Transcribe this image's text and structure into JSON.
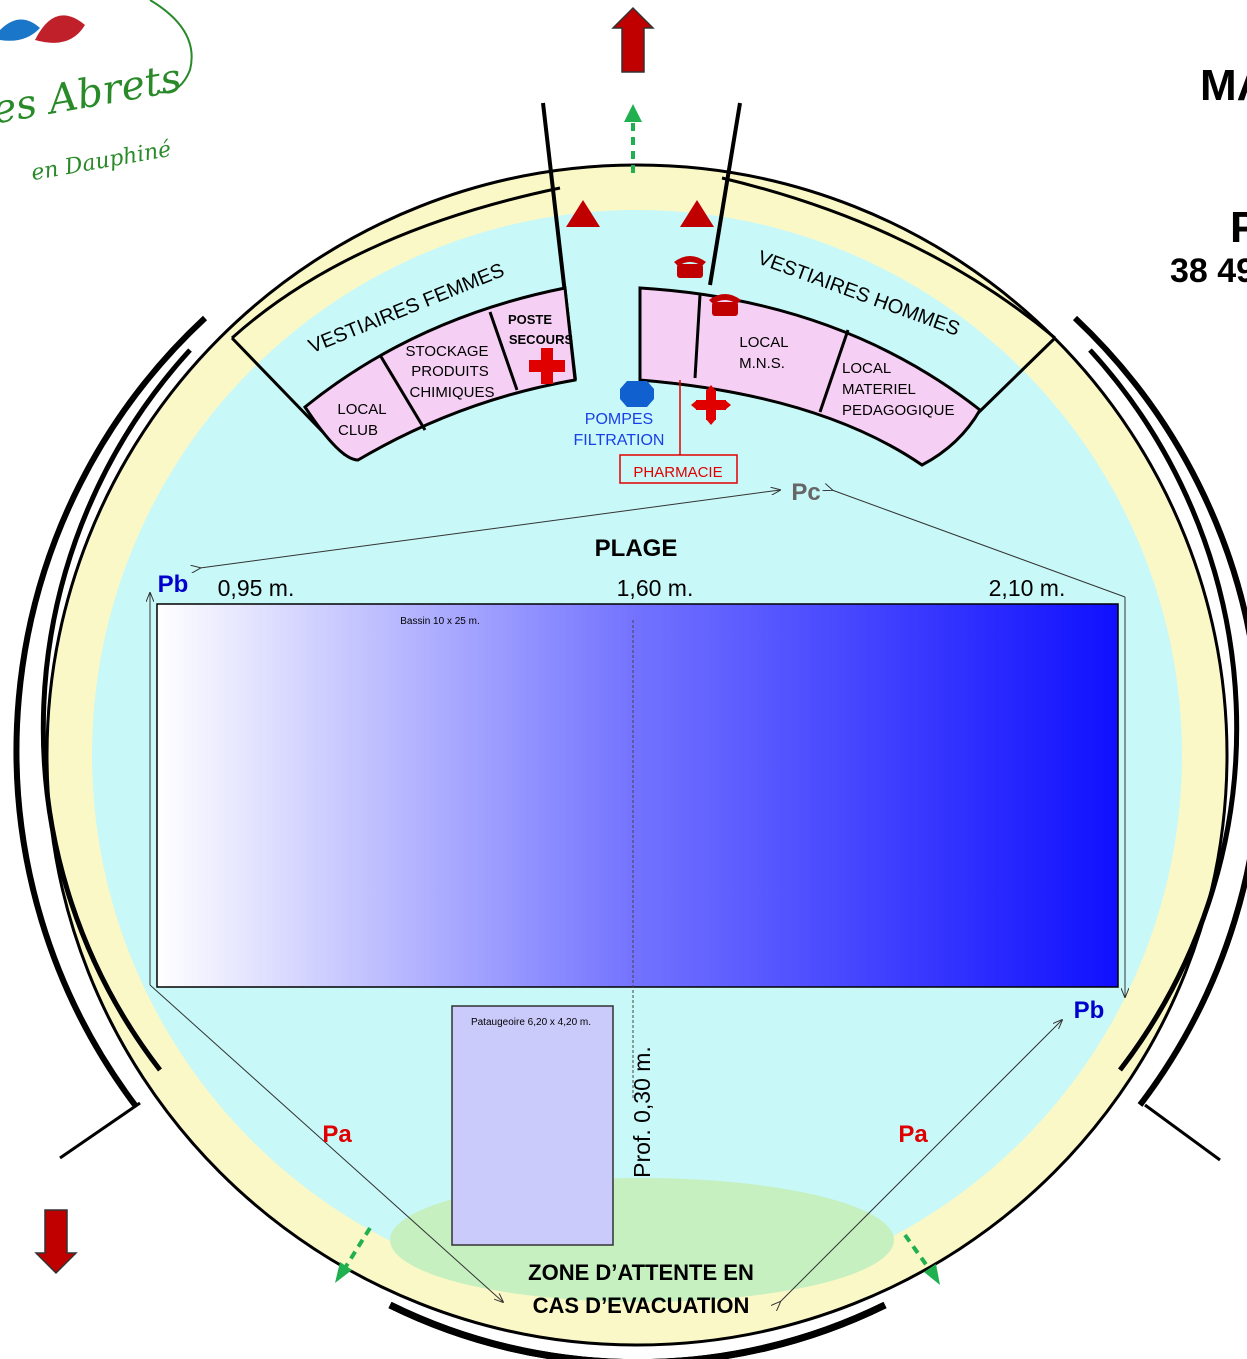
{
  "logo": {
    "line1": "es Abrets",
    "line2": "en Dauphiné"
  },
  "header": {
    "partial_title_1": "MA",
    "partial_title_2": "P",
    "partial_code": "38 49"
  },
  "rooms": {
    "vestiaires_femmes": "VESTIAIRES FEMMES",
    "vestiaires_hommes": "VESTIAIRES HOMMES",
    "local_club": [
      "LOCAL",
      "CLUB"
    ],
    "stockage": [
      "STOCKAGE",
      "PRODUITS",
      "CHIMIQUES"
    ],
    "poste_secours": [
      "POSTE",
      "SECOURS"
    ],
    "local_mns": [
      "LOCAL",
      "M.N.S."
    ],
    "local_materiel": [
      "LOCAL",
      "MATERIEL",
      "PEDAGOGIQUE"
    ]
  },
  "equipment": {
    "pompes": [
      "POMPES",
      "FILTRATION"
    ],
    "pharmacie": "PHARMACIE"
  },
  "zones": {
    "plage": "PLAGE",
    "attente": [
      "ZONE D’ATTENTE EN",
      "CAS D’EVACUATION"
    ]
  },
  "pool": {
    "label": "Bassin 10 x 25 m.",
    "depth_shallow": "0,95 m.",
    "depth_mid": "1,60 m.",
    "depth_deep": "2,10 m.",
    "color_shallow": "#ffffff",
    "color_deep": "#1010ff"
  },
  "paddling_pool": {
    "label": "Pataugeoire 6,20 x 4,20 m.",
    "depth": "Prof. 0,30 m."
  },
  "markers": {
    "pb": "Pb",
    "pc": "Pc",
    "pa": "Pa"
  },
  "colors": {
    "deck": "#c8f8f8",
    "ring": "#fbf8c7",
    "rooms": "#f6d0f4",
    "exit_arrow": "#c00000",
    "evac_arrow": "#20b050",
    "wait_zone": "#c6f0c0",
    "marker_blue": "#0000cc",
    "marker_red": "#e00000",
    "marker_gray": "#666666"
  }
}
